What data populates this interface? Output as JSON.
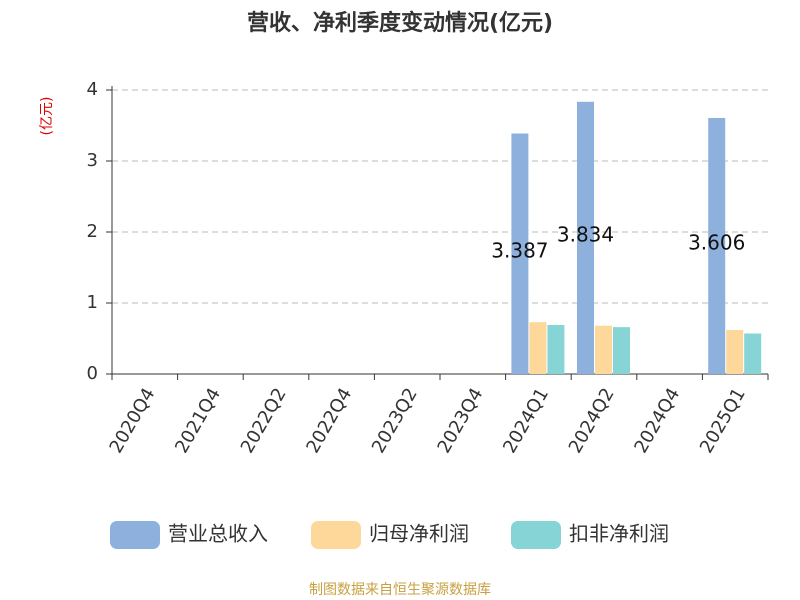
{
  "chart_data": {
    "type": "bar",
    "title": "营收、净利季度变动情况(亿元)",
    "y_label": "(亿元)",
    "source": "制图数据来自恒生聚源数据库",
    "categories": [
      "2020Q4",
      "2021Q4",
      "2022Q2",
      "2022Q4",
      "2023Q2",
      "2023Q4",
      "2024Q1",
      "2024Q2",
      "2024Q4",
      "2025Q1"
    ],
    "series": [
      {
        "name": "营业总收入",
        "color": "#8eb0dc",
        "values": [
          null,
          null,
          null,
          null,
          null,
          null,
          3.387,
          3.834,
          null,
          3.606
        ]
      },
      {
        "name": "归母净利润",
        "color": "#fdd89a",
        "values": [
          null,
          null,
          null,
          null,
          null,
          null,
          0.73,
          0.68,
          null,
          0.62
        ]
      },
      {
        "name": "扣非净利润",
        "color": "#86d4d6",
        "values": [
          null,
          null,
          null,
          null,
          null,
          null,
          0.69,
          0.66,
          null,
          0.57
        ]
      }
    ],
    "ylim": [
      0,
      4
    ],
    "yticks": [
      0,
      1,
      2,
      3,
      4
    ],
    "grid": true
  }
}
